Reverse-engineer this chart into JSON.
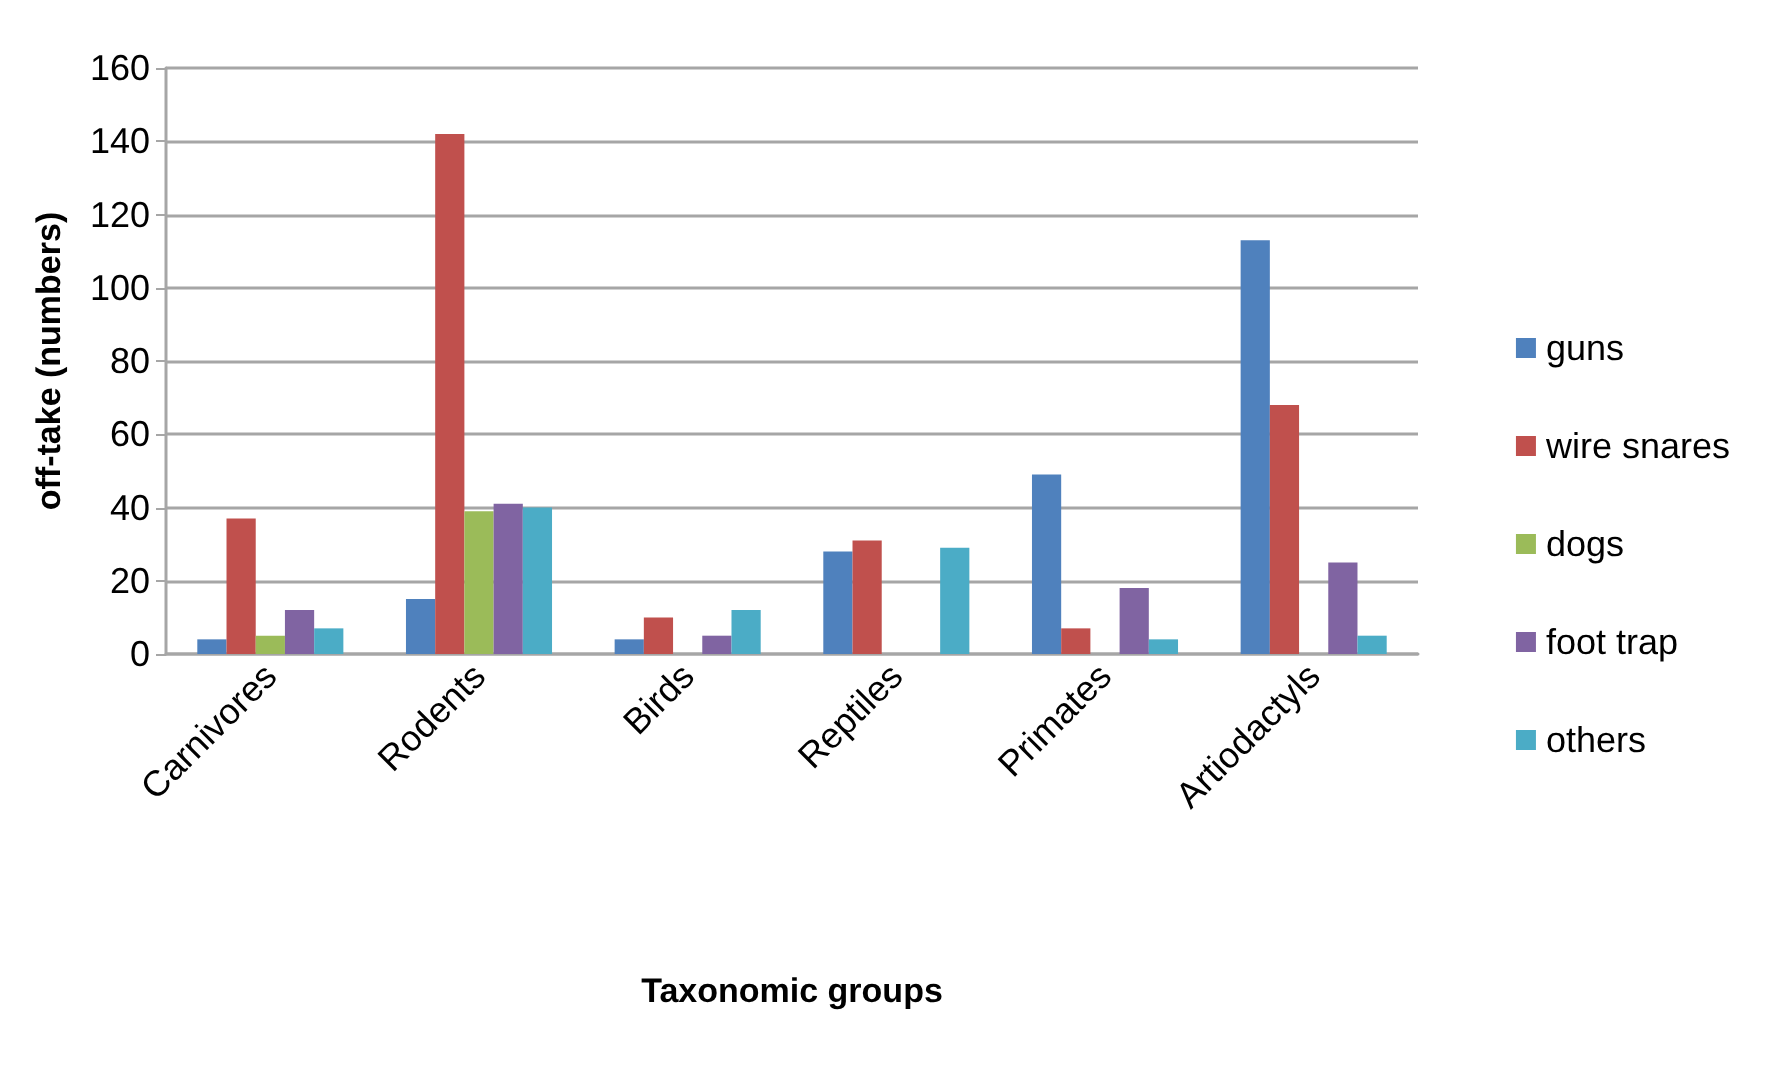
{
  "chart_data": {
    "type": "bar",
    "xlabel": "Taxonomic groups",
    "ylabel": "off-take (numbers)",
    "categories": [
      "Carnivores",
      "Rodents",
      "Birds",
      "Reptiles",
      "Primates",
      "Artiodactyls"
    ],
    "series": [
      {
        "name": "guns",
        "color": "#4f81bd",
        "values": [
          4,
          15,
          4,
          28,
          49,
          113
        ]
      },
      {
        "name": "wire snares",
        "color": "#c0504d",
        "values": [
          37,
          142,
          10,
          31,
          7,
          68
        ]
      },
      {
        "name": "dogs",
        "color": "#9bbb59",
        "values": [
          5,
          39,
          0,
          0,
          0,
          0
        ]
      },
      {
        "name": "foot trap",
        "color": "#8064a2",
        "values": [
          12,
          41,
          5,
          0,
          18,
          25
        ]
      },
      {
        "name": "others",
        "color": "#4bacc6",
        "values": [
          7,
          40,
          12,
          29,
          4,
          5
        ]
      }
    ],
    "ylim": [
      0,
      160
    ],
    "yticks": [
      0,
      20,
      40,
      60,
      80,
      100,
      120,
      140,
      160
    ],
    "grid": "y",
    "legend": "right"
  }
}
